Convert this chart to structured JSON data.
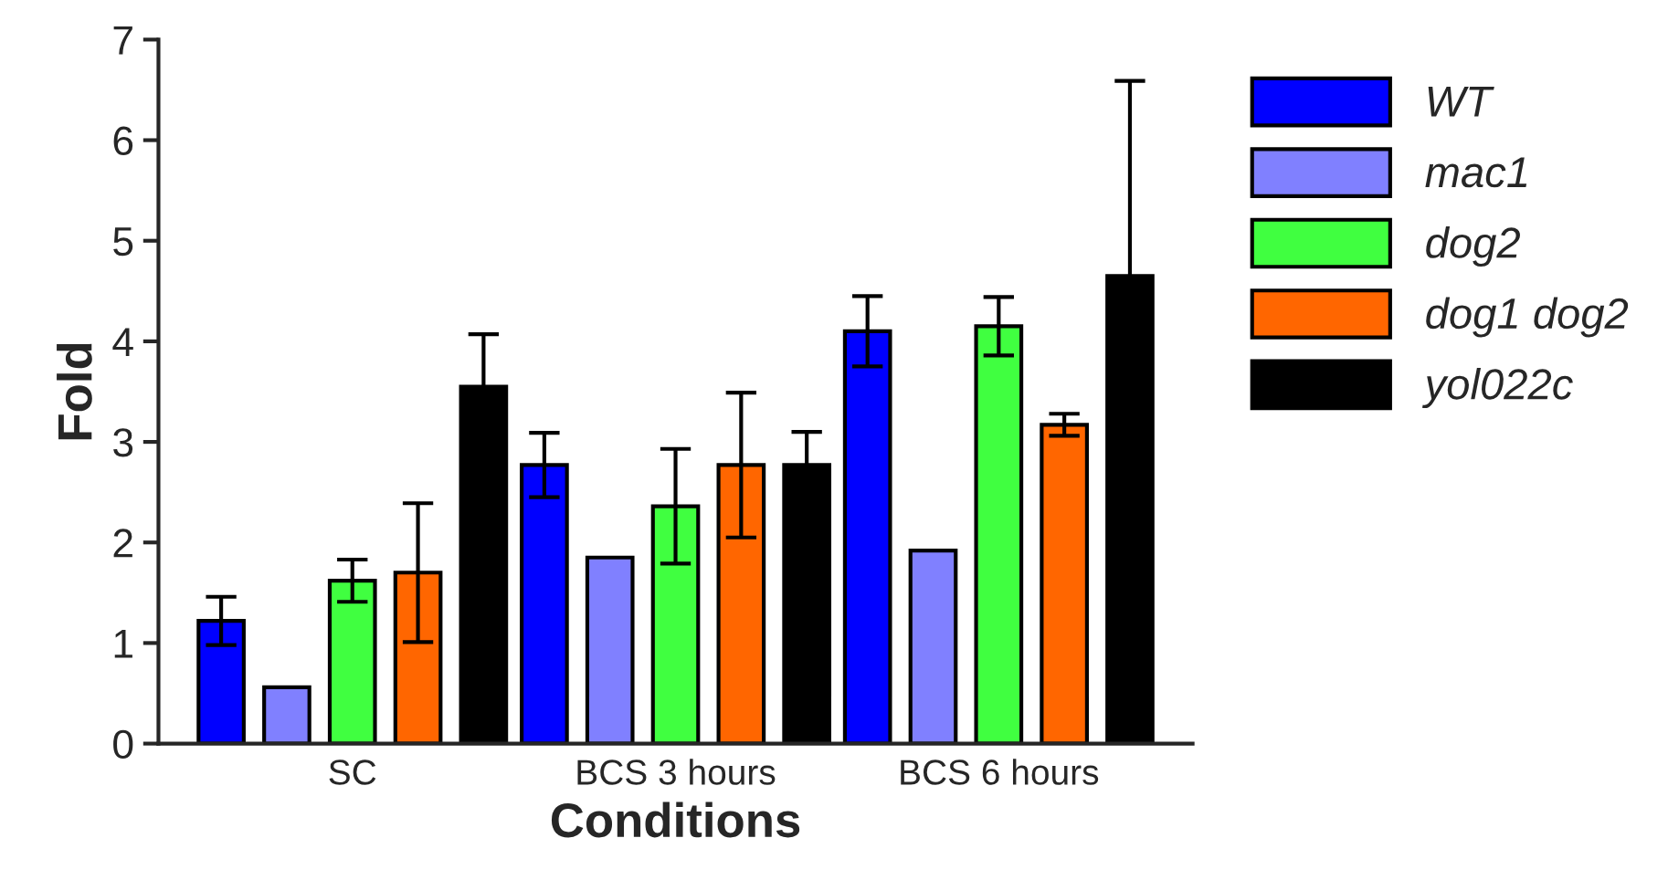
{
  "chart_data": {
    "type": "bar",
    "xlabel": "Conditions",
    "ylabel": "Fold",
    "categories": [
      "SC",
      "BCS 3 hours",
      "BCS 6 hours"
    ],
    "series": [
      {
        "name": "WT",
        "color": "#0000ff",
        "values": [
          1.22,
          2.77,
          4.1
        ],
        "errors": [
          0.24,
          0.32,
          0.35
        ]
      },
      {
        "name": "mac1",
        "color": "#8080ff",
        "values": [
          0.56,
          1.85,
          1.92
        ]
      },
      {
        "name": "dog2",
        "color": "#40ff40",
        "values": [
          1.62,
          2.36,
          4.15
        ],
        "errors": [
          0.21,
          0.57,
          0.29
        ]
      },
      {
        "name": "dog1 dog2",
        "color": "#ff6600",
        "values": [
          1.7,
          2.77,
          3.17
        ],
        "errors": [
          0.69,
          0.72,
          0.11
        ]
      },
      {
        "name": "yol022c",
        "color": "#000000",
        "values": [
          3.55,
          2.77,
          4.65
        ],
        "errors": [
          0.52,
          0.33,
          1.94
        ]
      }
    ],
    "ylim": [
      0,
      7
    ],
    "yticks": [
      0,
      1,
      2,
      3,
      4,
      5,
      6,
      7
    ],
    "grid": false,
    "legend": "right"
  }
}
